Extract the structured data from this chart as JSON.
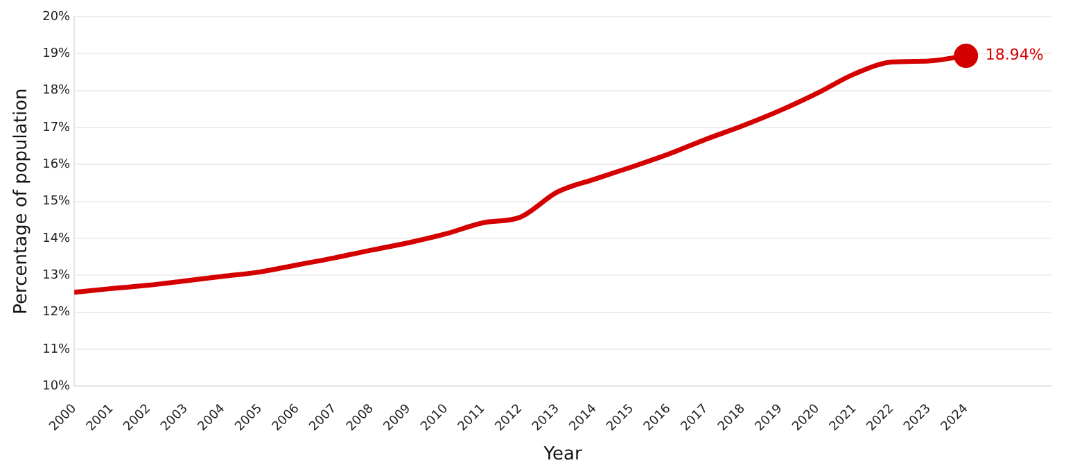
{
  "chart_data": {
    "type": "line",
    "xlabel": "Year",
    "ylabel": "Percentage of population",
    "x": [
      2000,
      2001,
      2002,
      2003,
      2004,
      2005,
      2006,
      2007,
      2008,
      2009,
      2010,
      2011,
      2012,
      2013,
      2014,
      2015,
      2016,
      2017,
      2018,
      2019,
      2020,
      2021,
      2022,
      2023,
      2024
    ],
    "series": [
      {
        "color": "#d40000",
        "values": [
          12.54,
          12.64,
          12.73,
          12.85,
          12.97,
          13.09,
          13.28,
          13.47,
          13.68,
          13.88,
          14.12,
          14.42,
          14.57,
          15.25,
          15.6,
          15.93,
          16.28,
          16.68,
          17.05,
          17.46,
          17.93,
          18.45,
          18.77,
          18.8,
          18.94
        ],
        "value_labels": [
          null,
          null,
          null,
          null,
          null,
          null,
          null,
          null,
          null,
          null,
          null,
          null,
          null,
          null,
          null,
          null,
          null,
          null,
          null,
          null,
          null,
          null,
          null,
          null,
          "18.94%"
        ]
      }
    ],
    "xlim": [
      2000,
      2026.3
    ],
    "xticks": [
      2000,
      2001,
      2002,
      2003,
      2004,
      2005,
      2006,
      2007,
      2008,
      2009,
      2010,
      2011,
      2012,
      2013,
      2014,
      2015,
      2016,
      2017,
      2018,
      2019,
      2020,
      2021,
      2022,
      2023,
      2024
    ],
    "ylim": [
      10,
      20
    ],
    "yticks": [
      {
        "value": 10,
        "label": "10%"
      },
      {
        "value": 11,
        "label": "11%"
      },
      {
        "value": 12,
        "label": "12%"
      },
      {
        "value": 13,
        "label": "13%"
      },
      {
        "value": 14,
        "label": "14%"
      },
      {
        "value": 15,
        "label": "15%"
      },
      {
        "value": 16,
        "label": "16%"
      },
      {
        "value": 17,
        "label": "17%"
      },
      {
        "value": 18,
        "label": "18%"
      },
      {
        "value": 19,
        "label": "19%"
      },
      {
        "value": 20,
        "label": "20%"
      }
    ],
    "grid": "y",
    "legend": false
  }
}
